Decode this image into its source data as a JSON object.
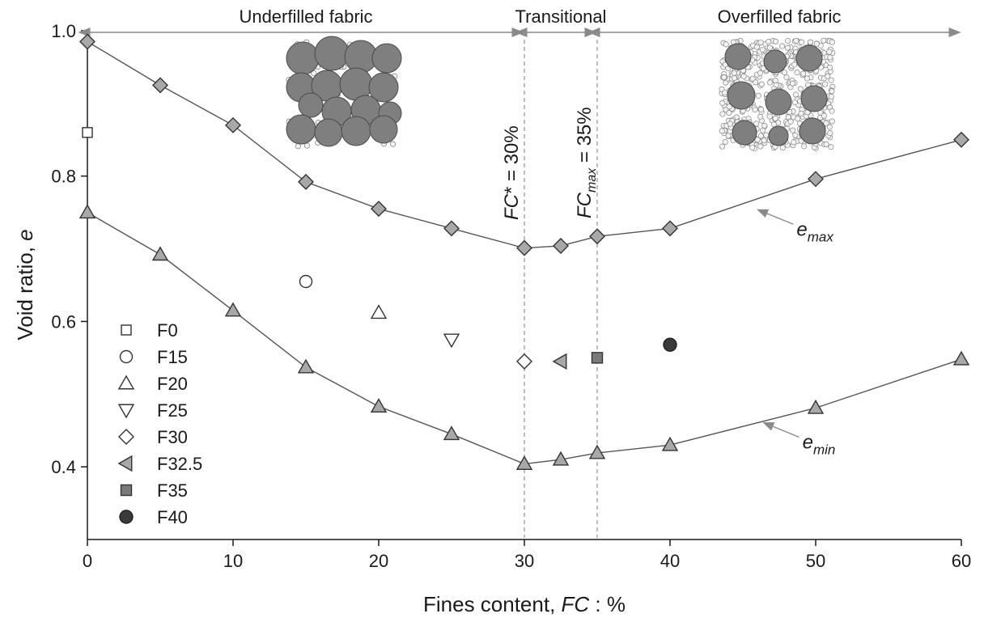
{
  "chart_data": {
    "type": "scatter",
    "xlabel": {
      "main": "Fines content, ",
      "italic": "FC",
      "tail": " : %"
    },
    "ylabel": {
      "main": "Void ratio, ",
      "italic": "e"
    },
    "xlim": [
      0,
      60
    ],
    "ylim": [
      0.3,
      1.0
    ],
    "x_ticks": [
      "0",
      "10",
      "20",
      "30",
      "40",
      "50",
      "60"
    ],
    "y_ticks": [
      "0.4",
      "0.6",
      "0.8",
      "1.0"
    ],
    "y_tick_values": [
      0.4,
      0.6,
      0.8,
      1.0
    ],
    "x_tick_values": [
      0,
      10,
      20,
      30,
      40,
      50,
      60
    ],
    "grid": false,
    "legend_position": "bottom-left",
    "regions": [
      {
        "label": "Underfilled fabric",
        "x_from": 0,
        "x_to": 30
      },
      {
        "label": "Transitional",
        "x_from": 30,
        "x_to": 35
      },
      {
        "label": "Overfilled fabric",
        "x_from": 35,
        "x_to": 60
      }
    ],
    "vlines": [
      {
        "x": 30,
        "label_italic": "FC",
        "label_sub": "",
        "label_rest": "* = 30%"
      },
      {
        "x": 35,
        "label_italic": "FC",
        "label_sub": "max",
        "label_rest": " = 35%"
      }
    ],
    "curves": [
      {
        "label_base": "e",
        "label_sub": "max",
        "marker": "diamond",
        "color": "#a8a8a8",
        "points": [
          [
            0,
            0.985
          ],
          [
            5,
            0.925
          ],
          [
            10,
            0.87
          ],
          [
            15,
            0.792
          ],
          [
            20,
            0.755
          ],
          [
            25,
            0.728
          ],
          [
            30,
            0.701
          ],
          [
            32.5,
            0.704
          ],
          [
            35,
            0.717
          ],
          [
            40,
            0.728
          ],
          [
            50,
            0.796
          ],
          [
            60,
            0.85
          ]
        ],
        "arrow_at": [
          45.8,
          0.756
        ]
      },
      {
        "label_base": "e",
        "label_sub": "min",
        "marker": "triangle-up",
        "color": "#a8a8a8",
        "points": [
          [
            0,
            0.75
          ],
          [
            5,
            0.692
          ],
          [
            10,
            0.615
          ],
          [
            15,
            0.537
          ],
          [
            20,
            0.483
          ],
          [
            25,
            0.445
          ],
          [
            30,
            0.404
          ],
          [
            32.5,
            0.41
          ],
          [
            35,
            0.419
          ],
          [
            40,
            0.43
          ],
          [
            50,
            0.481
          ],
          [
            60,
            0.548
          ]
        ],
        "arrow_at": [
          46.2,
          0.463
        ]
      }
    ],
    "series": [
      {
        "name": "F0",
        "marker": "square-open",
        "x": 0,
        "y": 0.86
      },
      {
        "name": "F15",
        "marker": "circle-open",
        "x": 15,
        "y": 0.655
      },
      {
        "name": "F20",
        "marker": "triangle-up-open",
        "x": 20,
        "y": 0.612
      },
      {
        "name": "F25",
        "marker": "triangle-down-open",
        "x": 25,
        "y": 0.575
      },
      {
        "name": "F30",
        "marker": "diamond-open",
        "x": 30,
        "y": 0.545
      },
      {
        "name": "F32.5",
        "marker": "triangle-left-gray",
        "x": 32.5,
        "y": 0.545
      },
      {
        "name": "F35",
        "marker": "square-gray",
        "x": 35,
        "y": 0.55
      },
      {
        "name": "F40",
        "marker": "circle-dark",
        "x": 40,
        "y": 0.568
      }
    ]
  }
}
